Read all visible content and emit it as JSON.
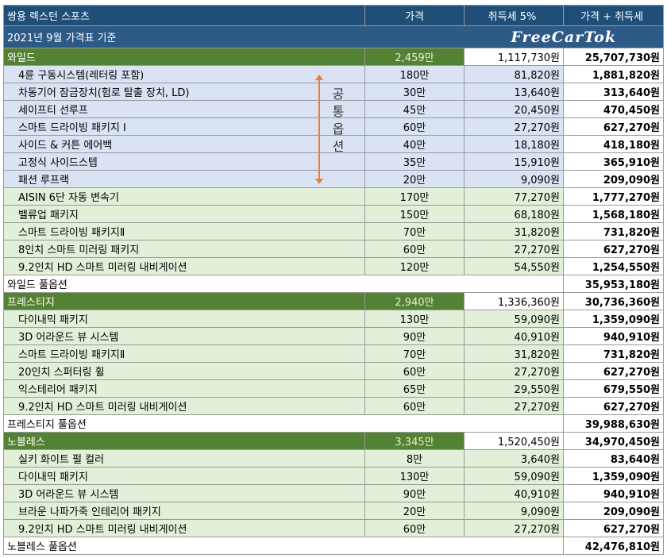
{
  "header": {
    "model": "쌍용 렉스턴 스포츠",
    "price": "가격",
    "tax": "취득세 5%",
    "total": "가격 + 취득세"
  },
  "subheader": {
    "title": "2021년 9월 가격표 기준",
    "logo": "FreeCarTok"
  },
  "common_options_label": "공통옵션",
  "rows": [
    {
      "kind": "grp",
      "name": "와일드",
      "price": "2,459만",
      "tax": "1,117,730원",
      "total": "25,707,730원"
    },
    {
      "kind": "opt",
      "bg": "blue",
      "name": "4륜 구동시스템(레터링 포함)",
      "price": "180만",
      "tax": "81,820원",
      "total": "1,881,820원"
    },
    {
      "kind": "opt",
      "bg": "blue",
      "name": "차동기어 잠금장치(험로 탈출 장치, LD)",
      "price": "30만",
      "tax": "13,640원",
      "total": "313,640원"
    },
    {
      "kind": "opt",
      "bg": "blue",
      "name": "세이프티 선루프",
      "price": "45만",
      "tax": "20,450원",
      "total": "470,450원"
    },
    {
      "kind": "opt",
      "bg": "blue",
      "name": "스마트 드라이빙 패키지 I",
      "price": "60만",
      "tax": "27,270원",
      "total": "627,270원"
    },
    {
      "kind": "opt",
      "bg": "blue",
      "name": "사이드 & 커튼 에어백",
      "price": "40만",
      "tax": "18,180원",
      "total": "418,180원"
    },
    {
      "kind": "opt",
      "bg": "blue",
      "name": "고정식 사이드스텝",
      "price": "35만",
      "tax": "15,910원",
      "total": "365,910원"
    },
    {
      "kind": "opt",
      "bg": "blue",
      "name": "패션 루프랙",
      "price": "20만",
      "tax": "9,090원",
      "total": "209,090원"
    },
    {
      "kind": "opt",
      "bg": "green",
      "name": "AISIN 6단 자동 변속기",
      "price": "170만",
      "tax": "77,270원",
      "total": "1,777,270원"
    },
    {
      "kind": "opt",
      "bg": "green",
      "name": "밸류업 패키지",
      "price": "150만",
      "tax": "68,180원",
      "total": "1,568,180원"
    },
    {
      "kind": "opt",
      "bg": "green",
      "name": "스마트 드라이빙 패키지Ⅱ",
      "price": "70만",
      "tax": "31,820원",
      "total": "731,820원"
    },
    {
      "kind": "opt",
      "bg": "green",
      "name": "8인치 스마트 미러링 패키지",
      "price": "60만",
      "tax": "27,270원",
      "total": "627,270원"
    },
    {
      "kind": "opt",
      "bg": "green",
      "name": "9.2인치 HD 스마트 미러링 내비게이션",
      "price": "120만",
      "tax": "54,550원",
      "total": "1,254,550원"
    },
    {
      "kind": "full",
      "name": "와일드 풀옵션",
      "total": "35,953,180원"
    },
    {
      "kind": "grp",
      "name": "프레스티지",
      "price": "2,940만",
      "tax": "1,336,360원",
      "total": "30,736,360원"
    },
    {
      "kind": "opt",
      "bg": "green",
      "name": "다이내믹 패키지",
      "price": "130만",
      "tax": "59,090원",
      "total": "1,359,090원"
    },
    {
      "kind": "opt",
      "bg": "green",
      "name": "3D 어라운드 뷰 시스템",
      "price": "90만",
      "tax": "40,910원",
      "total": "940,910원"
    },
    {
      "kind": "opt",
      "bg": "green",
      "name": "스마트 드라이빙 패키지Ⅱ",
      "price": "70만",
      "tax": "31,820원",
      "total": "731,820원"
    },
    {
      "kind": "opt",
      "bg": "green",
      "name": "20인치 스퍼터링 휠",
      "price": "60만",
      "tax": "27,270원",
      "total": "627,270원"
    },
    {
      "kind": "opt",
      "bg": "green",
      "name": "익스테리어 패키지",
      "price": "65만",
      "tax": "29,550원",
      "total": "679,550원"
    },
    {
      "kind": "opt",
      "bg": "green",
      "name": "9.2인치 HD 스마트 미러링 내비게이션",
      "price": "60만",
      "tax": "27,270원",
      "total": "627,270원"
    },
    {
      "kind": "full",
      "name": "프레스티지 풀옵션",
      "total": "39,988,630원"
    },
    {
      "kind": "grp",
      "name": "노블레스",
      "price": "3,345만",
      "tax": "1,520,450원",
      "total": "34,970,450원"
    },
    {
      "kind": "opt",
      "bg": "green",
      "name": "실키 화이트 펄 컬러",
      "price": "8만",
      "tax": "3,640원",
      "total": "83,640원"
    },
    {
      "kind": "opt",
      "bg": "green",
      "name": "다이내믹 패키지",
      "price": "130만",
      "tax": "59,090원",
      "total": "1,359,090원"
    },
    {
      "kind": "opt",
      "bg": "green",
      "name": "3D 어라운드 뷰 시스템",
      "price": "90만",
      "tax": "40,910원",
      "total": "940,910원"
    },
    {
      "kind": "opt",
      "bg": "green",
      "name": "브라운 나파가죽 인테리어 패키지",
      "price": "20만",
      "tax": "9,090원",
      "total": "209,090원"
    },
    {
      "kind": "opt",
      "bg": "green",
      "name": "9.2인치 HD 스마트 미러링 내비게이션",
      "price": "60만",
      "tax": "27,270원",
      "total": "627,270원"
    },
    {
      "kind": "full",
      "name": "노블레스 풀옵션",
      "total": "42,476,810원"
    }
  ]
}
